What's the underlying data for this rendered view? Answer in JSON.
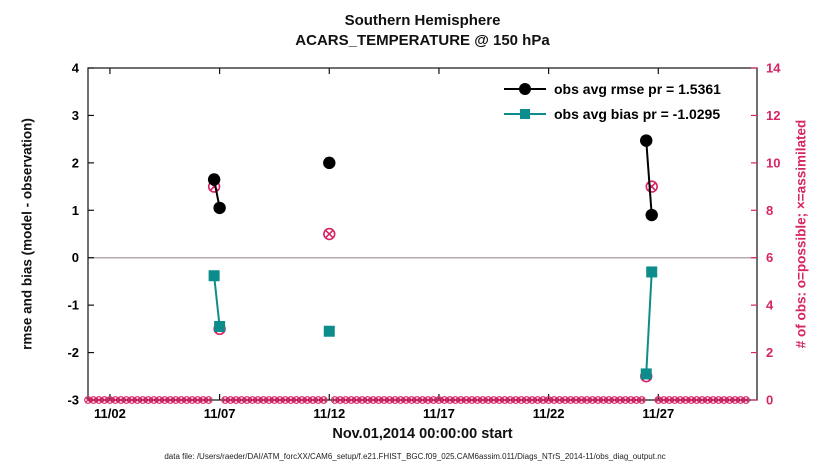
{
  "figure": {
    "title": "Southern Hemisphere",
    "subtitle": "ACARS_TEMPERATURE @ 150 hPa",
    "xlabel": "Nov.01,2014 00:00:00 start",
    "ylabel_left": "rmse and bias (model - observation)",
    "ylabel_right": "# of obs: o=possible; ×=assimilated",
    "footer": "data file: /Users/raeder/DAI/ATM_forcXX/CAM6_setup/f.e21.FHIST_BGC.f09_025.CAM6assim.011/Diags_NTrS_2014-11/obs_diag_output.nc"
  },
  "legend": {
    "entries": [
      {
        "label": "obs avg rmse pr = 1.5361",
        "color": "#000000",
        "marker": "circle"
      },
      {
        "label": "obs avg bias pr = -1.0295",
        "color": "#0d8c8c",
        "marker": "square"
      }
    ]
  },
  "chart_data": {
    "type": "line",
    "title": "Southern Hemisphere",
    "subtitle": "ACARS_TEMPERATURE @ 150 hPa",
    "x_axis": {
      "label": "Nov.01,2014 00:00:00 start",
      "ticks": [
        2,
        7,
        12,
        17,
        22,
        27
      ],
      "tick_labels": [
        "11/02",
        "11/07",
        "11/12",
        "11/17",
        "11/22",
        "11/27"
      ],
      "range_days": [
        1,
        31.5
      ]
    },
    "y_axis_left": {
      "label": "rmse and bias (model - observation)",
      "ticks": [
        -3,
        -2,
        -1,
        0,
        1,
        2,
        3,
        4
      ],
      "range": [
        -3,
        4
      ]
    },
    "y_axis_right": {
      "label": "# of obs: o=possible; ×=assimilated",
      "ticks": [
        0,
        2,
        4,
        6,
        8,
        10,
        12,
        14
      ],
      "range": [
        0,
        14
      ],
      "color": "#d62465"
    },
    "zero_line_y": 0,
    "series": [
      {
        "name": "obs-avg-rmse",
        "legend_label": "obs avg rmse pr = 1.5361",
        "avg": 1.5361,
        "color": "#000000",
        "marker": "circle",
        "segments": [
          [
            [
              6.75,
              1.65
            ],
            [
              7.0,
              1.05
            ]
          ],
          [
            [
              12.0,
              2.0
            ]
          ],
          [
            [
              26.45,
              2.47
            ],
            [
              26.7,
              0.9
            ]
          ]
        ]
      },
      {
        "name": "obs-avg-bias",
        "legend_label": "obs avg bias pr = -1.0295",
        "avg": -1.0295,
        "color": "#0d8c8c",
        "marker": "square",
        "segments": [
          [
            [
              6.75,
              -0.38
            ],
            [
              7.0,
              -1.45
            ]
          ],
          [
            [
              12.0,
              -1.55
            ]
          ],
          [
            [
              26.45,
              -2.45
            ],
            [
              26.7,
              -0.3
            ]
          ]
        ]
      }
    ],
    "obs_counts": {
      "description": "number of observations, right axis; circle-with-x markers",
      "color": "#d62465",
      "marker": "circle-x",
      "points": [
        [
          6.75,
          9
        ],
        [
          7.0,
          3
        ],
        [
          12.0,
          7
        ],
        [
          26.45,
          1
        ],
        [
          26.7,
          9
        ]
      ],
      "zero_row": {
        "start_day": 1.0,
        "end_day": 31.0,
        "step_days": 0.25,
        "count": 0
      }
    }
  }
}
